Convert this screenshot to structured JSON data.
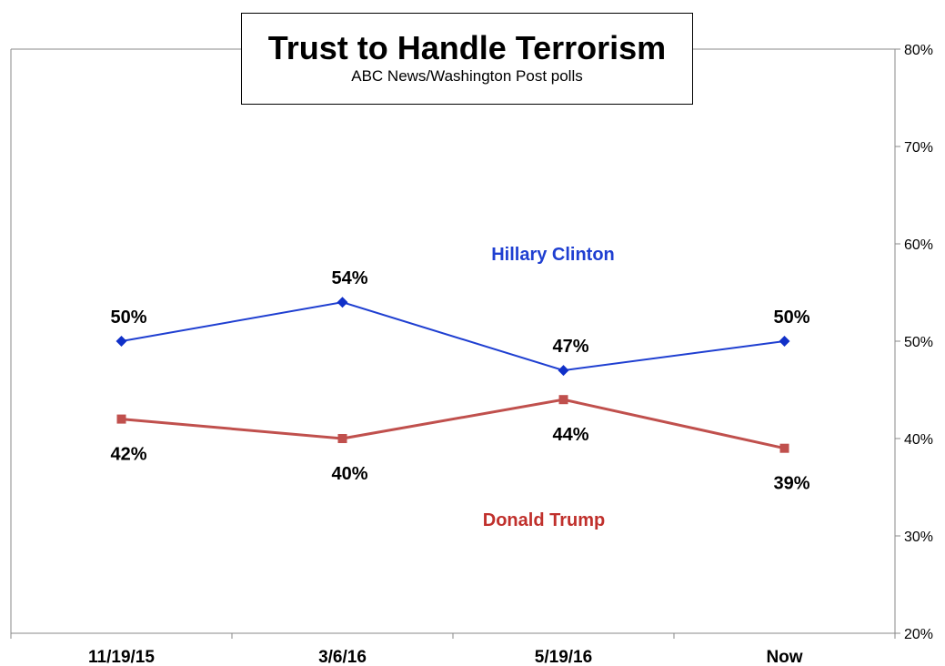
{
  "chart_data": {
    "type": "line",
    "title": "Trust to Handle Terrorism",
    "subtitle": "ABC News/Washington  Post polls",
    "categories": [
      "11/19/15",
      "3/6/16",
      "5/19/16",
      "Now"
    ],
    "y_axis_side": "right",
    "ylim": [
      20,
      80
    ],
    "yticks": [
      20,
      30,
      40,
      50,
      60,
      70,
      80
    ],
    "ytick_labels": [
      "20%",
      "30%",
      "40%",
      "50%",
      "60%",
      "70%",
      "80%"
    ],
    "grid": false,
    "series": [
      {
        "name": "Hillary Clinton",
        "values": [
          50,
          54,
          47,
          50
        ],
        "labels": [
          "50%",
          "54%",
          "47%",
          "50%"
        ],
        "color": "#1f3fd1",
        "marker": "diamond"
      },
      {
        "name": "Donald Trump",
        "values": [
          42,
          40,
          44,
          39
        ],
        "labels": [
          "42%",
          "40%",
          "44%",
          "39%"
        ],
        "color": "#c0504d",
        "marker": "square"
      }
    ]
  }
}
